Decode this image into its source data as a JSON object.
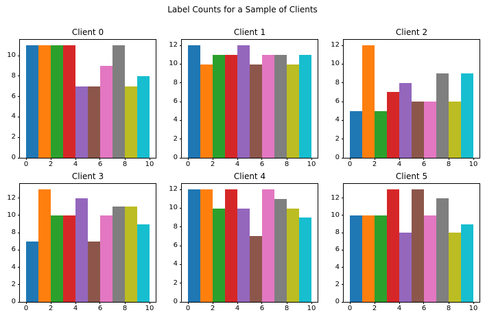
{
  "figure": {
    "title": "Label Counts for a Sample of Clients",
    "background": "#ffffff",
    "axis_color": "#000000"
  },
  "palette": [
    "#1f77b4",
    "#ff7f0e",
    "#2ca02c",
    "#d62728",
    "#9467bd",
    "#8c564b",
    "#e377c2",
    "#7f7f7f",
    "#bcbd22",
    "#17becf"
  ],
  "chart_data": [
    {
      "type": "bar",
      "title": "Client 0",
      "categories": [
        0,
        1,
        2,
        3,
        4,
        5,
        6,
        7,
        8,
        9
      ],
      "values": [
        11,
        11,
        11,
        11,
        7,
        7,
        9,
        11,
        7,
        8
      ],
      "xlabel": "",
      "ylabel": "",
      "xlim": [
        -0.5,
        10.5
      ],
      "ylim": [
        0,
        11.55
      ],
      "xticks": [
        0,
        2,
        4,
        6,
        8,
        10
      ],
      "yticks": [
        0,
        2,
        4,
        6,
        8,
        10
      ],
      "grid": false,
      "legend": "none"
    },
    {
      "type": "bar",
      "title": "Client 1",
      "categories": [
        0,
        1,
        2,
        3,
        4,
        5,
        6,
        7,
        8,
        9
      ],
      "values": [
        12,
        10,
        11,
        11,
        12,
        10,
        11,
        11,
        10,
        11
      ],
      "xlabel": "",
      "ylabel": "",
      "xlim": [
        -0.5,
        10.5
      ],
      "ylim": [
        0,
        12.6
      ],
      "xticks": [
        0,
        2,
        4,
        6,
        8,
        10
      ],
      "yticks": [
        0,
        2,
        4,
        6,
        8,
        10,
        12
      ],
      "grid": false,
      "legend": "none"
    },
    {
      "type": "bar",
      "title": "Client 2",
      "categories": [
        0,
        1,
        2,
        3,
        4,
        5,
        6,
        7,
        8,
        9
      ],
      "values": [
        5,
        12,
        5,
        7,
        8,
        6,
        6,
        9,
        6,
        9
      ],
      "xlabel": "",
      "ylabel": "",
      "xlim": [
        -0.5,
        10.5
      ],
      "ylim": [
        0,
        12.6
      ],
      "xticks": [
        0,
        2,
        4,
        6,
        8,
        10
      ],
      "yticks": [
        0,
        2,
        4,
        6,
        8,
        10,
        12
      ],
      "grid": false,
      "legend": "none"
    },
    {
      "type": "bar",
      "title": "Client 3",
      "categories": [
        0,
        1,
        2,
        3,
        4,
        5,
        6,
        7,
        8,
        9
      ],
      "values": [
        7,
        13,
        10,
        10,
        12,
        7,
        10,
        11,
        11,
        9
      ],
      "xlabel": "",
      "ylabel": "",
      "xlim": [
        -0.5,
        10.5
      ],
      "ylim": [
        0,
        13.65
      ],
      "xticks": [
        0,
        2,
        4,
        6,
        8,
        10
      ],
      "yticks": [
        0,
        2,
        4,
        6,
        8,
        10,
        12
      ],
      "grid": false,
      "legend": "none"
    },
    {
      "type": "bar",
      "title": "Client 4",
      "categories": [
        0,
        1,
        2,
        3,
        4,
        5,
        6,
        7,
        8,
        9
      ],
      "values": [
        12,
        12,
        10,
        12,
        10,
        7,
        12,
        11,
        10,
        9
      ],
      "xlabel": "",
      "ylabel": "",
      "xlim": [
        -0.5,
        10.5
      ],
      "ylim": [
        0,
        12.6
      ],
      "xticks": [
        0,
        2,
        4,
        6,
        8,
        10
      ],
      "yticks": [
        0,
        2,
        4,
        6,
        8,
        10,
        12
      ],
      "grid": false,
      "legend": "none"
    },
    {
      "type": "bar",
      "title": "Client 5",
      "categories": [
        0,
        1,
        2,
        3,
        4,
        5,
        6,
        7,
        8,
        9
      ],
      "values": [
        10,
        10,
        10,
        13,
        8,
        13,
        10,
        12,
        8,
        9
      ],
      "xlabel": "",
      "ylabel": "",
      "xlim": [
        -0.5,
        10.5
      ],
      "ylim": [
        0,
        13.65
      ],
      "xticks": [
        0,
        2,
        4,
        6,
        8,
        10
      ],
      "yticks": [
        0,
        2,
        4,
        6,
        8,
        10,
        12
      ],
      "grid": false,
      "legend": "none"
    }
  ]
}
